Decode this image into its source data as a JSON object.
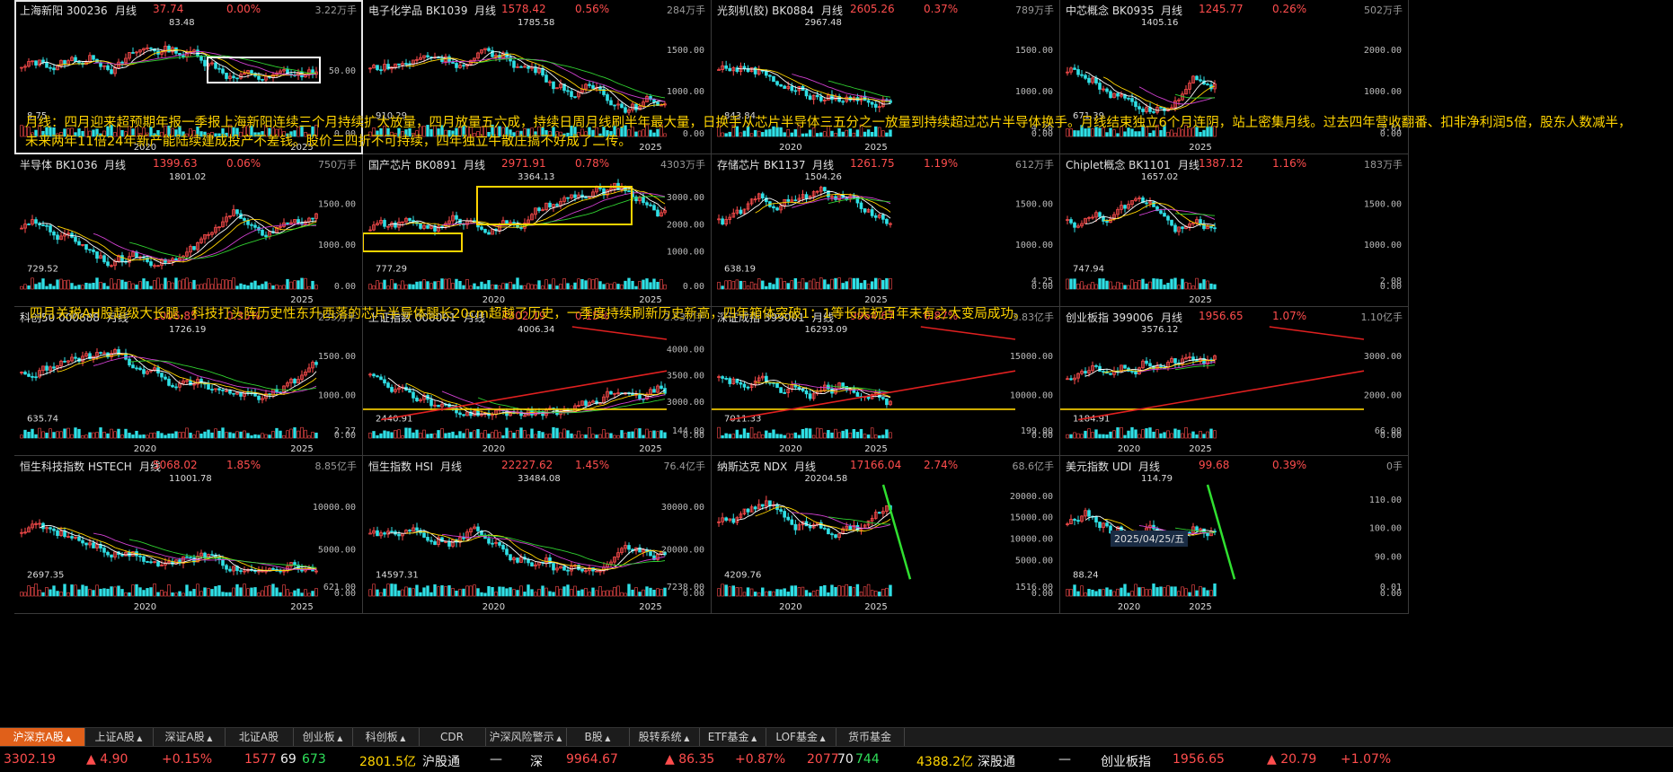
{
  "panels": [
    {
      "name": "上海新阳 300236",
      "period": "月线",
      "price": "37.74",
      "change": "0.00%",
      "volume": "3.22万手",
      "ticks": [
        "50.00"
      ],
      "years": [
        "2020",
        "2025"
      ],
      "hi": "83.48",
      "lo": "8.75",
      "voltick": "",
      "selected": true
    },
    {
      "name": "电子化学品 BK1039",
      "period": "月线",
      "price": "1578.42",
      "change": "0.56%",
      "volume": "284万手",
      "ticks": [
        "1500.00",
        "1000.00"
      ],
      "years": [
        "2025"
      ],
      "hi": "1785.58",
      "lo": "910.29",
      "voltick": "",
      "selected": false
    },
    {
      "name": "光刻机(胶) BK0884",
      "period": "月线",
      "price": "2605.26",
      "change": "0.37%",
      "volume": "789万手",
      "ticks": [
        "1500.00",
        "1000.00"
      ],
      "years": [
        "2020",
        "2025"
      ],
      "hi": "2967.48",
      "lo": "843.84",
      "voltick": "4.28",
      "selected": false
    },
    {
      "name": "中芯概念 BK0935",
      "period": "月线",
      "price": "1245.77",
      "change": "0.26%",
      "volume": "502万手",
      "ticks": [
        "2000.00",
        "1000.00"
      ],
      "years": [
        "2025"
      ],
      "hi": "1405.16",
      "lo": "671.39",
      "voltick": "3.61",
      "selected": false
    },
    {
      "name": "半导体 BK1036",
      "period": "月线",
      "price": "1399.63",
      "change": "0.06%",
      "volume": "750万手",
      "ticks": [
        "1500.00",
        "1000.00"
      ],
      "years": [
        "2025"
      ],
      "hi": "1801.02",
      "lo": "729.52",
      "voltick": "",
      "selected": false
    },
    {
      "name": "国产芯片 BK0891",
      "period": "月线",
      "price": "2971.91",
      "change": "0.78%",
      "volume": "4303万手",
      "ticks": [
        "3000.00",
        "2000.00",
        "1000.00"
      ],
      "years": [
        "2020",
        "2025"
      ],
      "hi": "3364.13",
      "lo": "777.29",
      "voltick": "",
      "selected": false
    },
    {
      "name": "存储芯片 BK1137",
      "period": "月线",
      "price": "1261.75",
      "change": "1.19%",
      "volume": "612万手",
      "ticks": [
        "1500.00",
        "1000.00"
      ],
      "years": [
        "2025"
      ],
      "hi": "1504.26",
      "lo": "638.19",
      "voltick": "4.25",
      "selected": false
    },
    {
      "name": "Chiplet概念 BK1101",
      "period": "月线",
      "price": "1387.12",
      "change": "1.16%",
      "volume": "183万手",
      "ticks": [
        "1500.00",
        "1000.00"
      ],
      "years": [
        "2025"
      ],
      "hi": "1657.02",
      "lo": "747.94",
      "voltick": "2.08",
      "selected": false
    },
    {
      "name": "科创50 000688",
      "period": "月线",
      "price": "1006.85",
      "change": "0.35%",
      "volume": "235万手",
      "ticks": [
        "1500.00",
        "1000.00"
      ],
      "years": [
        "2020",
        "2025"
      ],
      "hi": "1726.19",
      "lo": "635.74",
      "voltick": "2.27",
      "selected": false
    },
    {
      "name": "上证指数 000001",
      "period": "月线",
      "price": "3302.19",
      "change": "0.15%",
      "volume": "2.63亿手",
      "ticks": [
        "4000.00",
        "3500.00",
        "3000.00"
      ],
      "years": [
        "2020",
        "2025"
      ],
      "hi": "4006.34",
      "lo": "2440.91",
      "voltick": "144.00",
      "selected": false
    },
    {
      "name": "深证成指 399001",
      "period": "月线",
      "price": "9964.67",
      "change": "0.87%",
      "volume": "3.83亿手",
      "ticks": [
        "15000.00",
        "10000.00"
      ],
      "years": [
        "2020",
        "2025"
      ],
      "hi": "16293.09",
      "lo": "7011.33",
      "voltick": "199.00",
      "selected": false
    },
    {
      "name": "创业板指 399006",
      "period": "月线",
      "price": "1956.65",
      "change": "1.07%",
      "volume": "1.10亿手",
      "ticks": [
        "3000.00",
        "2000.00"
      ],
      "years": [
        "2020",
        "2025"
      ],
      "hi": "3576.12",
      "lo": "1184.91",
      "voltick": "66.00",
      "selected": false
    },
    {
      "name": "恒生科技指数 HSTECH",
      "period": "月线",
      "price": "5068.02",
      "change": "1.85%",
      "volume": "8.85亿手",
      "ticks": [
        "10000.00",
        "5000.00"
      ],
      "years": [
        "2020",
        "2025"
      ],
      "hi": "11001.78",
      "lo": "2697.35",
      "voltick": "621.00",
      "selected": false
    },
    {
      "name": "恒生指数 HSI",
      "period": "月线",
      "price": "22227.62",
      "change": "1.45%",
      "volume": "76.4亿手",
      "ticks": [
        "30000.00",
        "20000.00"
      ],
      "years": [
        "2020",
        "2025"
      ],
      "hi": "33484.08",
      "lo": "14597.31",
      "voltick": "7238.00",
      "selected": false
    },
    {
      "name": "纳斯达克 NDX",
      "period": "月线",
      "price": "17166.04",
      "change": "2.74%",
      "volume": "68.6亿手",
      "ticks": [
        "20000.00",
        "15000.00",
        "10000.00",
        "5000.00"
      ],
      "years": [
        "2020",
        "2025"
      ],
      "hi": "20204.58",
      "lo": "4209.76",
      "voltick": "1516.00",
      "selected": false
    },
    {
      "name": "美元指数 UDI",
      "period": "月线",
      "price": "99.68",
      "change": "0.39%",
      "volume": "0手",
      "ticks": [
        "110.00",
        "100.00",
        "90.00"
      ],
      "years": [
        "2020",
        "2025"
      ],
      "hi": "114.79",
      "lo": "88.24",
      "voltick": "0.01",
      "selected": false
    }
  ],
  "notes": {
    "note1": "月线：四月迎来超预期年报一季报上海新阳连续三个月持续扩大放量，四月放量五六成，持续日周月线刷半年最大量，日换手从芯片半导体三五分之一放量到持续超过芯片半导体换手。月线结束独立6个月连阴，站上密集月线。过去四年营收翻番、扣非净利润5倍，股东人数减半，未来两年11倍24年新产能陆续建成投产不差钱。股价三四折不可持续，四年独立牛散庄搞不好成了二传。",
    "note2": "四月关税AH股超级大长腿，科技打头阵历史性东升西落的芯片半导体腿长20cm超越了历史，一季度持续刷新历史新高，四年箱体突破1：1等长庆祝百年未有之大变局成功。"
  },
  "date_label": "2025/04/25/五",
  "tabs": [
    "沪深京A股",
    "上证A股",
    "深证A股",
    "北证A股",
    "创业板",
    "科创板",
    "CDR",
    "沪深风险警示",
    "B股",
    "股转系统",
    "ETF基金",
    "LOF基金",
    "货币基金"
  ],
  "tabs_with_arrow": [
    true,
    true,
    true,
    false,
    true,
    true,
    false,
    true,
    true,
    true,
    true,
    true,
    false
  ],
  "active_tab": 0,
  "status": {
    "sh_price": "3302.19",
    "sh_change": "▲ 4.90",
    "sh_pct": "+0.15%",
    "sh_up": "1577",
    "sh_flat": "69",
    "sh_down": "673",
    "sh_amount": "2801.5亿",
    "hgt_label": "沪股通",
    "hgt_value": "—",
    "sz_label": "深",
    "sz_price": "9964.67",
    "sz_change": "▲ 86.35",
    "sz_pct": "+0.87%",
    "sz_up": "2077",
    "sz_flat": "70",
    "sz_down": "744",
    "sz_amount": "4388.2亿",
    "sgt_label": "深股通",
    "sgt_value": "—",
    "cyb_label": "创业板指",
    "cyb_price": "1956.65",
    "cyb_change": "▲ 20.79",
    "cyb_pct": "+1.07%"
  },
  "colors": {
    "up": "#ff4d4d",
    "down": "#2fe0e6",
    "ma5": "#ffffff",
    "ma10": "#ffd400",
    "ma20": "#d040d0",
    "ma60": "#30d030",
    "note": "#ffd400",
    "active_tab": "#e0601a"
  }
}
